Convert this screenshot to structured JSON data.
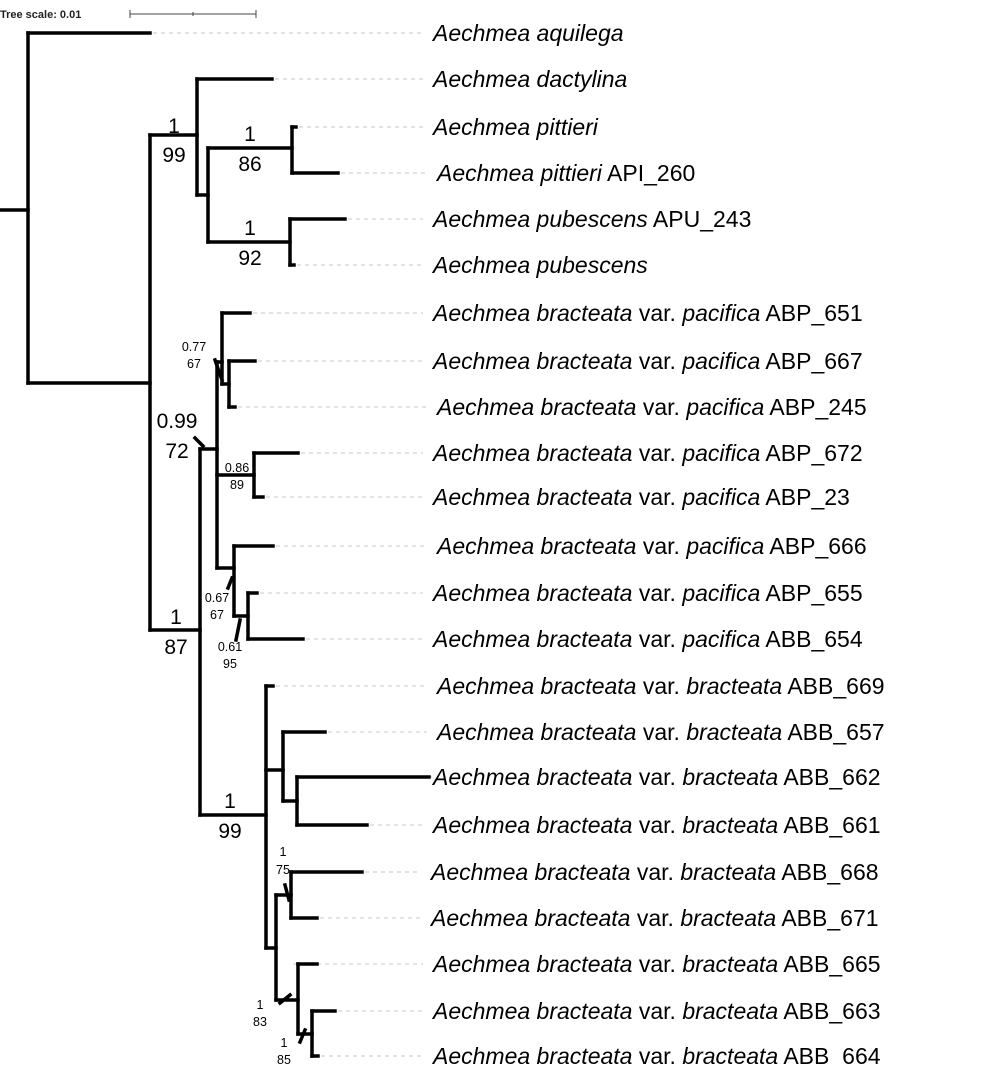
{
  "scale": {
    "label": "Tree scale: 0.01"
  },
  "tips": [
    [
      {
        "t": "Aechmea aquilega",
        "i": true
      }
    ],
    [
      {
        "t": "Aechmea dactylina",
        "i": true
      }
    ],
    [
      {
        "t": "Aechmea pittieri",
        "i": true
      }
    ],
    [
      {
        "t": "Aechmea pittieri",
        "i": true
      },
      {
        "t": " API_260",
        "i": false
      }
    ],
    [
      {
        "t": "Aechmea pubescens",
        "i": true
      },
      {
        "t": " APU_243",
        "i": false
      }
    ],
    [
      {
        "t": "Aechmea pubescens",
        "i": true
      }
    ],
    [
      {
        "t": "Aechmea bracteata",
        "i": true
      },
      {
        "t": " var. ",
        "i": false
      },
      {
        "t": "pacifica",
        "i": true
      },
      {
        "t": " ABP_651",
        "i": false
      }
    ],
    [
      {
        "t": "Aechmea bracteata",
        "i": true
      },
      {
        "t": " var. ",
        "i": false
      },
      {
        "t": "pacifica",
        "i": true
      },
      {
        "t": " ABP_667",
        "i": false
      }
    ],
    [
      {
        "t": "Aechmea bracteata",
        "i": true
      },
      {
        "t": " var. ",
        "i": false
      },
      {
        "t": "pacifica",
        "i": true
      },
      {
        "t": " ABP_245",
        "i": false
      }
    ],
    [
      {
        "t": "Aechmea bracteata",
        "i": true
      },
      {
        "t": " var. ",
        "i": false
      },
      {
        "t": "pacifica",
        "i": true
      },
      {
        "t": " ABP_672",
        "i": false
      }
    ],
    [
      {
        "t": "Aechmea bracteata",
        "i": true
      },
      {
        "t": " var. ",
        "i": false
      },
      {
        "t": "pacifica",
        "i": true
      },
      {
        "t": " ABP_23",
        "i": false
      }
    ],
    [
      {
        "t": "Aechmea bracteata",
        "i": true
      },
      {
        "t": " var. ",
        "i": false
      },
      {
        "t": "pacifica",
        "i": true
      },
      {
        "t": " ABP_666",
        "i": false
      }
    ],
    [
      {
        "t": "Aechmea bracteata",
        "i": true
      },
      {
        "t": " var. ",
        "i": false
      },
      {
        "t": "pacifica",
        "i": true
      },
      {
        "t": " ABP_655",
        "i": false
      }
    ],
    [
      {
        "t": "Aechmea bracteata",
        "i": true
      },
      {
        "t": " var. ",
        "i": false
      },
      {
        "t": "pacifica",
        "i": true
      },
      {
        "t": " ABB_654",
        "i": false
      }
    ],
    [
      {
        "t": "Aechmea bracteata",
        "i": true
      },
      {
        "t": " var. ",
        "i": false
      },
      {
        "t": "bracteata",
        "i": true
      },
      {
        "t": " ABB_669",
        "i": false
      }
    ],
    [
      {
        "t": "Aechmea bracteata",
        "i": true
      },
      {
        "t": " var. ",
        "i": false
      },
      {
        "t": "bracteata",
        "i": true
      },
      {
        "t": " ABB_657",
        "i": false
      }
    ],
    [
      {
        "t": "Aechmea bracteata",
        "i": true
      },
      {
        "t": " var. ",
        "i": false
      },
      {
        "t": "bracteata",
        "i": true
      },
      {
        "t": " ABB_662",
        "i": false
      }
    ],
    [
      {
        "t": "Aechmea bracteata",
        "i": true
      },
      {
        "t": " var. ",
        "i": false
      },
      {
        "t": "bracteata",
        "i": true
      },
      {
        "t": " ABB_661",
        "i": false
      }
    ],
    [
      {
        "t": "Aechmea bracteata",
        "i": true
      },
      {
        "t": " var. ",
        "i": false
      },
      {
        "t": "bracteata",
        "i": true
      },
      {
        "t": " ABB_668",
        "i": false
      }
    ],
    [
      {
        "t": "Aechmea bracteata",
        "i": true
      },
      {
        "t": " var. ",
        "i": false
      },
      {
        "t": "bracteata",
        "i": true
      },
      {
        "t": " ABB_671",
        "i": false
      }
    ],
    [
      {
        "t": "Aechmea bracteata",
        "i": true
      },
      {
        "t": " var. ",
        "i": false
      },
      {
        "t": "bracteata",
        "i": true
      },
      {
        "t": " ABB_665",
        "i": false
      }
    ],
    [
      {
        "t": "Aechmea bracteata",
        "i": true
      },
      {
        "t": " var. ",
        "i": false
      },
      {
        "t": "bracteata",
        "i": true
      },
      {
        "t": " ABB_663",
        "i": false
      }
    ],
    [
      {
        "t": "Aechmea bracteata",
        "i": true
      },
      {
        "t": " var. ",
        "i": false
      },
      {
        "t": "bracteata",
        "i": true
      },
      {
        "t": " ABB_664",
        "i": false
      }
    ]
  ],
  "support": [
    {
      "pp": "1",
      "bs": "99"
    },
    {
      "pp": "1",
      "bs": "86"
    },
    {
      "pp": "1",
      "bs": "92"
    },
    {
      "pp": "0.77",
      "bs": "67"
    },
    {
      "pp": "0.99",
      "bs": "72"
    },
    {
      "pp": "0.86",
      "bs": "89"
    },
    {
      "pp": "0.67",
      "bs": "67"
    },
    {
      "pp": "0.61",
      "bs": "95"
    },
    {
      "pp": "1",
      "bs": "87"
    },
    {
      "pp": "1",
      "bs": "99"
    },
    {
      "pp": "1",
      "bs": "75"
    },
    {
      "pp": "1",
      "bs": "83"
    },
    {
      "pp": "1",
      "bs": "85"
    }
  ]
}
